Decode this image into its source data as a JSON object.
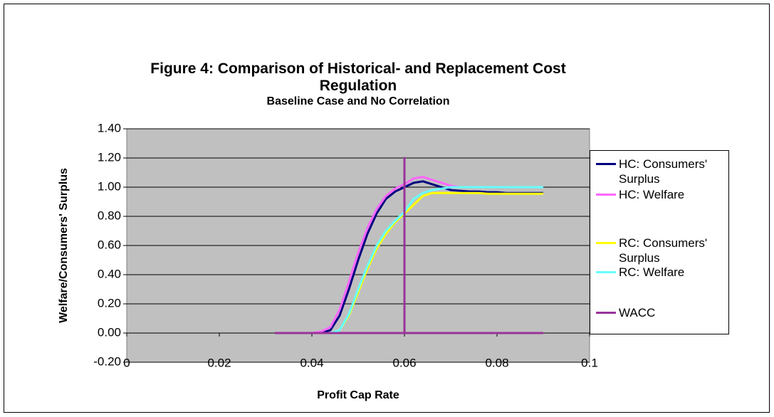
{
  "chart_data": {
    "type": "line",
    "title": "Figure 4: Comparison of Historical- and Replacement Cost Regulation",
    "subtitle": "Baseline Case and No Correlation",
    "x_label": "Profit Cap Rate",
    "y_label": "Welfare/Consumers' Surplus",
    "x": [
      0.032,
      0.034,
      0.036,
      0.038,
      0.04,
      0.042,
      0.044,
      0.046,
      0.048,
      0.05,
      0.052,
      0.054,
      0.056,
      0.058,
      0.06,
      0.062,
      0.064,
      0.066,
      0.068,
      0.07,
      0.072,
      0.074,
      0.076,
      0.078,
      0.08,
      0.082,
      0.084,
      0.086,
      0.088,
      0.09
    ],
    "series": [
      {
        "name": "HC: Consumers' Surplus",
        "color": "#000080",
        "values": [
          0,
          0,
          0,
          0,
          0,
          0,
          0.02,
          0.12,
          0.3,
          0.5,
          0.68,
          0.82,
          0.92,
          0.97,
          1.0,
          1.03,
          1.04,
          1.02,
          1.0,
          0.98,
          0.975,
          0.97,
          0.97,
          0.965,
          0.965,
          0.96,
          0.96,
          0.96,
          0.96,
          0.96
        ]
      },
      {
        "name": "HC: Welfare",
        "color": "#ff66ff",
        "values": [
          0,
          0,
          0,
          0,
          0,
          0.01,
          0.04,
          0.16,
          0.35,
          0.55,
          0.72,
          0.85,
          0.94,
          0.99,
          1.02,
          1.06,
          1.07,
          1.05,
          1.03,
          1.01,
          1.0,
          1.0,
          1.0,
          1.0,
          1.0,
          1.0,
          1.0,
          1.0,
          1.0,
          1.0
        ]
      },
      {
        "name": "RC: Consumers' Surplus",
        "color": "#ffff00",
        "values": [
          0,
          0,
          0,
          0,
          0,
          0,
          0,
          0.02,
          0.12,
          0.28,
          0.44,
          0.58,
          0.68,
          0.76,
          0.82,
          0.88,
          0.94,
          0.96,
          0.96,
          0.96,
          0.96,
          0.96,
          0.96,
          0.955,
          0.955,
          0.955,
          0.955,
          0.955,
          0.955,
          0.955
        ]
      },
      {
        "name": "RC: Welfare",
        "color": "#66ffff",
        "values": [
          0,
          0,
          0,
          0,
          0,
          0,
          0,
          0.02,
          0.13,
          0.3,
          0.46,
          0.6,
          0.7,
          0.77,
          0.83,
          0.92,
          0.96,
          0.98,
          0.99,
          1.0,
          1.0,
          1.0,
          1.0,
          1.0,
          1.0,
          1.0,
          1.0,
          1.0,
          1.0,
          1.0
        ]
      },
      {
        "name": "WACC",
        "color": "#993399",
        "x": [
          0.032,
          0.06,
          0.06,
          0.06,
          0.09
        ],
        "values": [
          0,
          0,
          1.2,
          0,
          0
        ]
      }
    ],
    "xlim": [
      0,
      0.1
    ],
    "xticks": [
      0,
      0.02,
      0.04,
      0.06,
      0.08,
      0.1
    ],
    "ylim": [
      -0.2,
      1.4
    ],
    "yticks": [
      {
        "value": -0.2,
        "label": "-0.20"
      },
      {
        "value": 0,
        "label": "0.00"
      },
      {
        "value": 0.2,
        "label": "0.20"
      },
      {
        "value": 0.4,
        "label": "0.40"
      },
      {
        "value": 0.6,
        "label": "0.60"
      },
      {
        "value": 0.8,
        "label": "0.80"
      },
      {
        "value": 1.0,
        "label": "1.00"
      },
      {
        "value": 1.2,
        "label": "1.20"
      },
      {
        "value": 1.4,
        "label": "1.40"
      }
    ],
    "grid": true,
    "legend": "right"
  }
}
